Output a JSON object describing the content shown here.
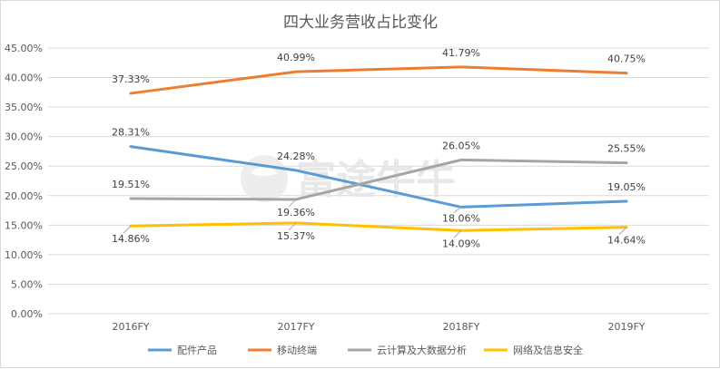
{
  "chart_data": {
    "type": "line",
    "title": "四大业务营收占比变化",
    "categories": [
      "2016FY",
      "2017FY",
      "2018FY",
      "2019FY"
    ],
    "y_ticks": [
      "0.00%",
      "5.00%",
      "10.00%",
      "15.00%",
      "20.00%",
      "25.00%",
      "30.00%",
      "35.00%",
      "40.00%",
      "45.00%"
    ],
    "ylim": [
      0,
      45
    ],
    "grid": true,
    "legend_position": "bottom",
    "series": [
      {
        "name": "配件产品",
        "color": "#5b9bd5",
        "values": [
          28.31,
          24.28,
          18.06,
          19.05
        ],
        "labels": [
          "28.31%",
          "24.28%",
          "18.06%",
          "19.05%"
        ]
      },
      {
        "name": "移动终端",
        "color": "#ed7d31",
        "values": [
          37.33,
          40.99,
          41.79,
          40.75
        ],
        "labels": [
          "37.33%",
          "40.99%",
          "41.79%",
          "40.75%"
        ]
      },
      {
        "name": "云计算及大数据分析",
        "color": "#a5a5a5",
        "values": [
          19.51,
          19.36,
          26.05,
          25.55
        ],
        "labels": [
          "19.51%",
          "19.36%",
          "26.05%",
          "25.55%"
        ]
      },
      {
        "name": "网络及信息安全",
        "color": "#ffc000",
        "values": [
          14.86,
          15.37,
          14.09,
          14.64
        ],
        "labels": [
          "14.86%",
          "15.37%",
          "14.09%",
          "14.64%"
        ]
      }
    ]
  },
  "watermark": {
    "logo_text": "富途牛牛"
  }
}
